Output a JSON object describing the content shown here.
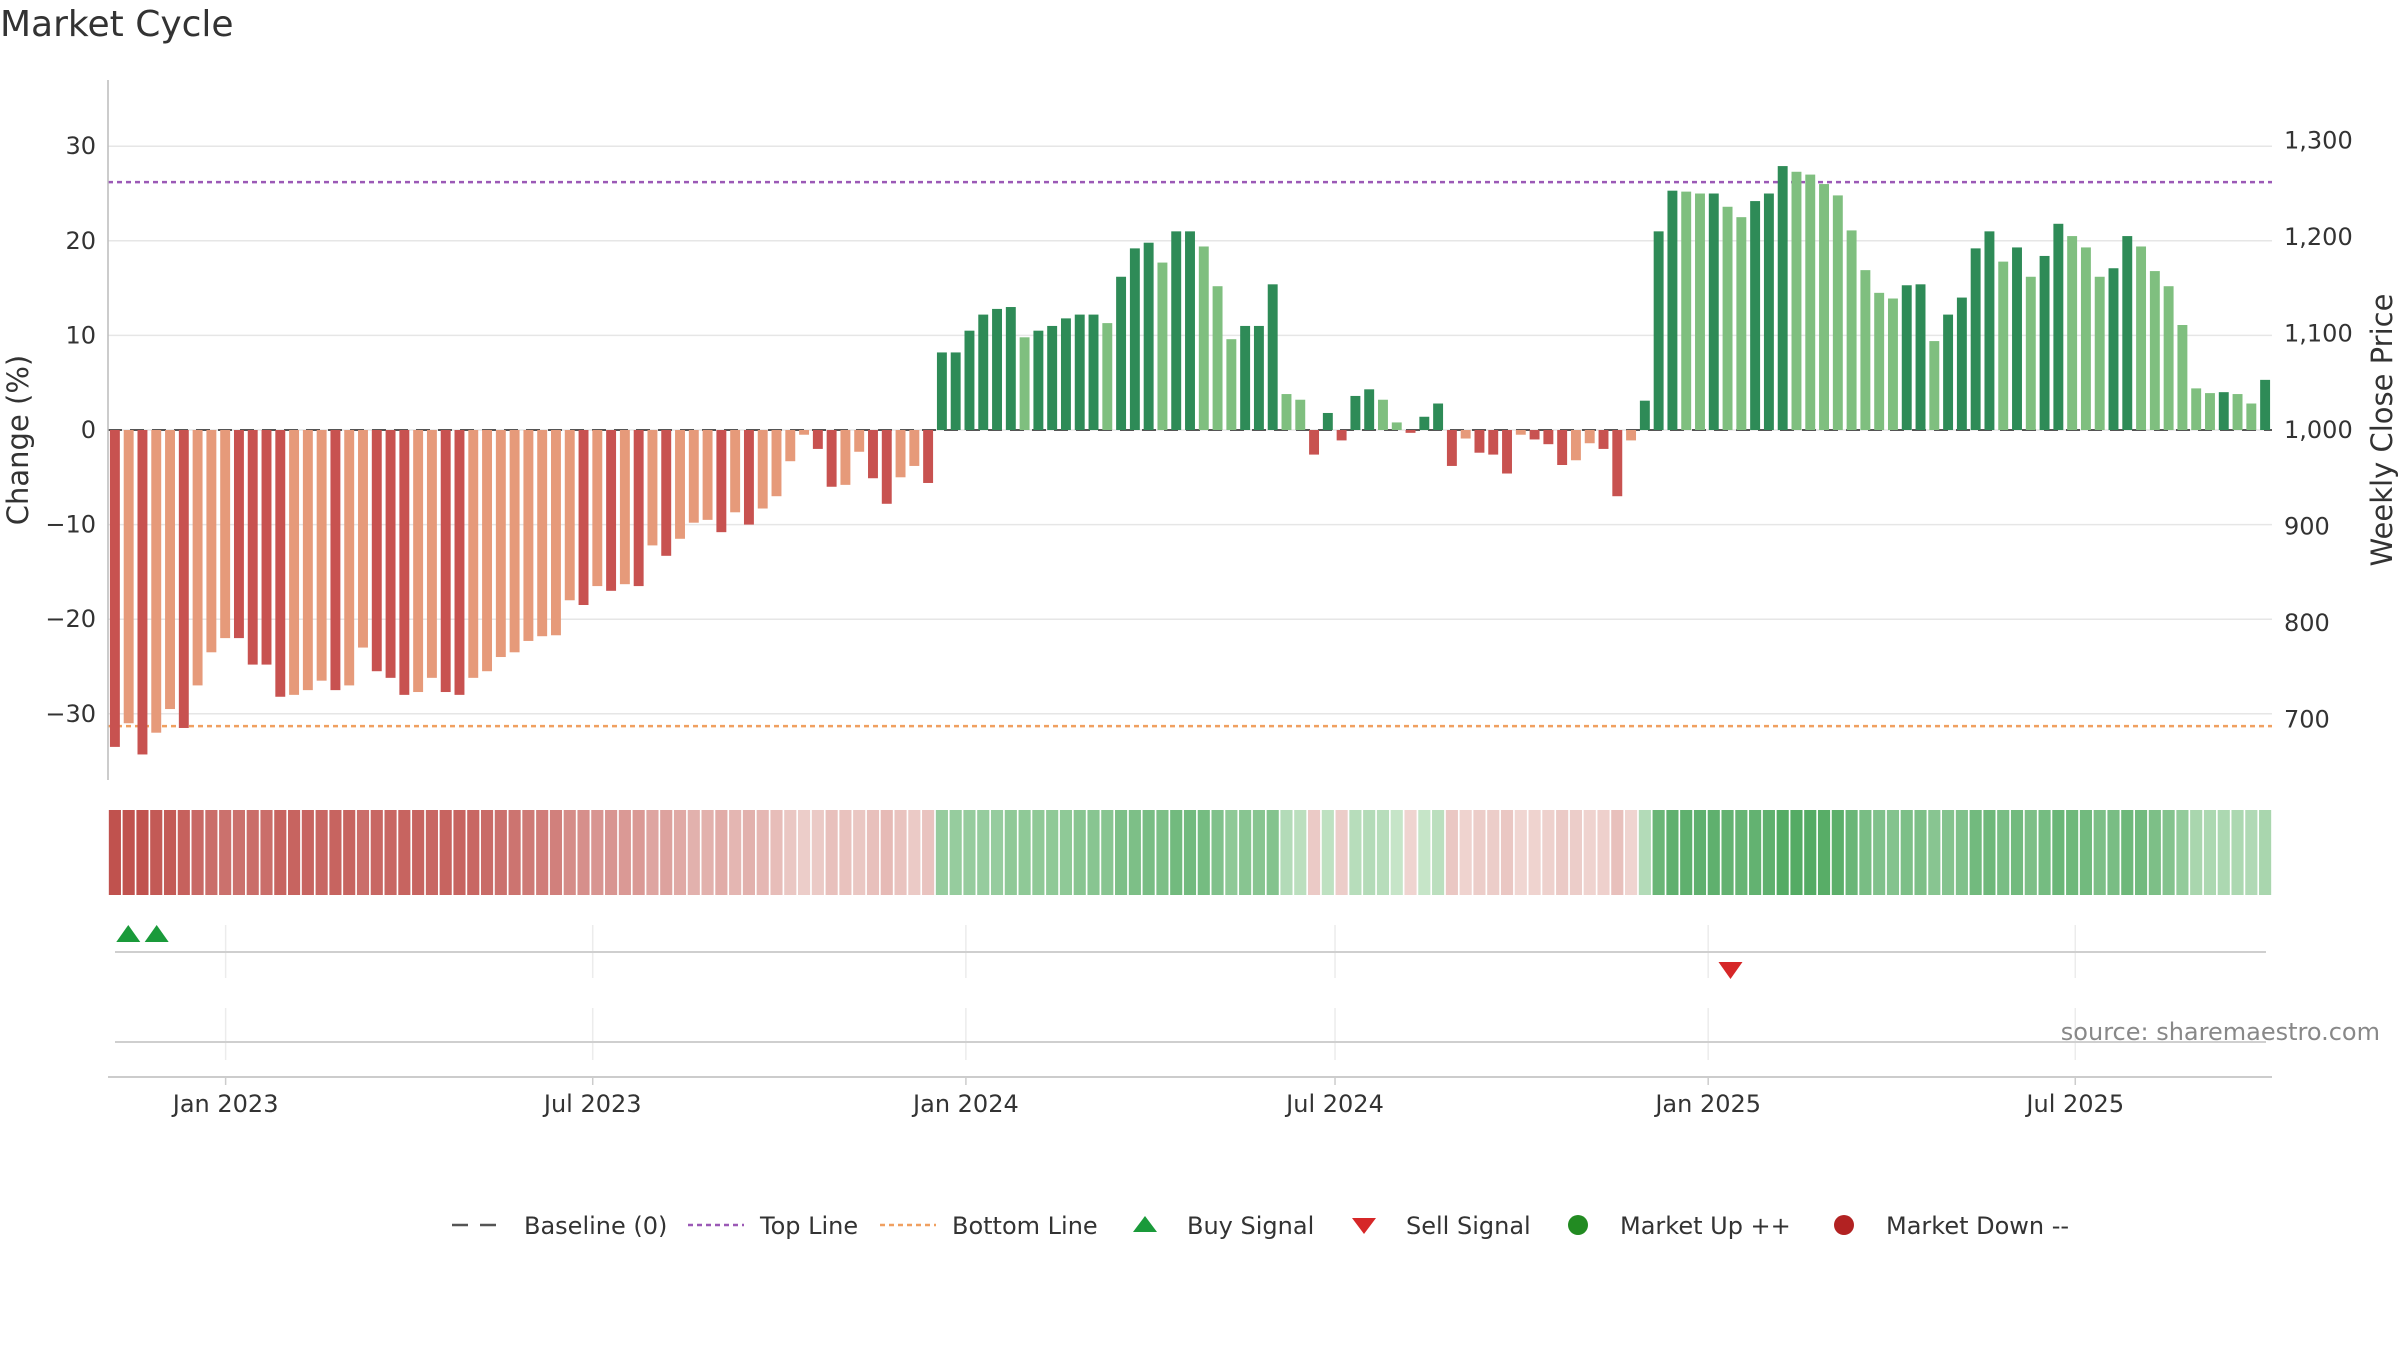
{
  "title": "Market Cycle",
  "source_note": "source: sharemaestro.com",
  "colors": {
    "strong_up": "#2e8b57",
    "weak_up": "#7fbf7f",
    "strong_down": "#c85250",
    "weak_down": "#e69a7a",
    "top_line": "#9b59b6",
    "bottom_line": "#f0a060",
    "buy": "#1a9a3a",
    "sell": "#d62728",
    "market_up": "#228b22",
    "market_down": "#b22222"
  },
  "chart_data": {
    "type": "bar",
    "title": "Market Cycle",
    "ylabel": "Change (%)",
    "ylabel_right": "Weekly Close Price",
    "ylim": [
      -37,
      37
    ],
    "yticks": [
      30,
      20,
      10,
      0,
      -10,
      -20,
      -30
    ],
    "ytick_labels": [
      "30",
      "20",
      "10",
      "0",
      "−10",
      "−20",
      "−30"
    ],
    "y2lim": [
      637,
      1363
    ],
    "y2ticks": [
      1300,
      1200,
      1100,
      1000,
      900,
      800,
      700
    ],
    "y2tick_labels": [
      "1,300",
      "1,200",
      "1,100",
      "1,000",
      "900",
      "800",
      "700"
    ],
    "x_start": "2022-11-04",
    "x_end": "2025-10-06",
    "x_ticks": [
      {
        "date": "2023-01-01",
        "label": "Jan 2023"
      },
      {
        "date": "2023-07-01",
        "label": "Jul 2023"
      },
      {
        "date": "2024-01-01",
        "label": "Jan 2024"
      },
      {
        "date": "2024-07-01",
        "label": "Jul 2024"
      },
      {
        "date": "2025-01-01",
        "label": "Jan 2025"
      },
      {
        "date": "2025-07-01",
        "label": "Jul 2025"
      }
    ],
    "top_line": 26.2,
    "bottom_line": -31.3,
    "grid": true,
    "legend_position": "bottom",
    "series": [
      {
        "name": "Change (%)",
        "values": [
          -33.5,
          -31,
          -34.3,
          -32,
          -29.5,
          -31.5,
          -27,
          -23.5,
          -22,
          -22,
          -24.8,
          -24.8,
          -28.2,
          -28,
          -27.5,
          -26.5,
          -27.5,
          -27,
          -23,
          -25.5,
          -26.2,
          -28,
          -27.7,
          -26.2,
          -27.7,
          -28,
          -26.2,
          -25.5,
          -24,
          -23.5,
          -22.3,
          -21.8,
          -21.7,
          -18,
          -18.5,
          -16.5,
          -17,
          -16.3,
          -16.5,
          -12.2,
          -13.3,
          -11.5,
          -9.8,
          -9.5,
          -10.8,
          -8.7,
          -10,
          -8.3,
          -7,
          -3.3,
          -0.5,
          -2,
          -6,
          -5.8,
          -2.3,
          -5.1,
          -7.8,
          -5,
          -3.8,
          -5.6,
          8.2,
          8.2,
          10.5,
          12.2,
          12.8,
          13,
          9.8,
          10.5,
          11,
          11.8,
          12.2,
          12.2,
          11.3,
          16.2,
          19.2,
          19.8,
          17.7,
          21,
          21,
          19.4,
          15.2,
          9.6,
          11,
          11,
          15.4,
          3.8,
          3.2,
          -2.6,
          1.8,
          -1.1,
          3.6,
          4.3,
          3.2,
          0.8,
          -0.3,
          1.4,
          2.8,
          -3.8,
          -0.9,
          -2.4,
          -2.6,
          -4.6,
          -0.5,
          -1,
          -1.5,
          -3.7,
          -3.2,
          -1.4,
          -2,
          -7,
          -1.1,
          3.1,
          21,
          25.3,
          25.2,
          25,
          25,
          23.6,
          22.5,
          24.2,
          25,
          27.9,
          27.3,
          27,
          26,
          24.8,
          21.1,
          16.9,
          14.5,
          13.9,
          15.3,
          15.4,
          9.4,
          12.2,
          14,
          19.2,
          21,
          17.8,
          19.3,
          16.2,
          18.4,
          21.8,
          20.5,
          19.3,
          16.2,
          17.1,
          20.5,
          19.4,
          16.8,
          15.2,
          11.1,
          4.4,
          3.9,
          4,
          3.8,
          2.8,
          5.3
        ]
      }
    ],
    "cycle_strip": [
      -0.9,
      -0.9,
      -0.9,
      -0.85,
      -0.85,
      -0.8,
      -0.75,
      -0.72,
      -0.7,
      -0.7,
      -0.72,
      -0.72,
      -0.78,
      -0.78,
      -0.78,
      -0.76,
      -0.78,
      -0.78,
      -0.72,
      -0.76,
      -0.76,
      -0.78,
      -0.78,
      -0.76,
      -0.78,
      -0.78,
      -0.76,
      -0.74,
      -0.7,
      -0.68,
      -0.64,
      -0.62,
      -0.6,
      -0.52,
      -0.5,
      -0.46,
      -0.46,
      -0.44,
      -0.44,
      -0.36,
      -0.38,
      -0.33,
      -0.28,
      -0.28,
      -0.31,
      -0.25,
      -0.28,
      -0.24,
      -0.2,
      -0.14,
      -0.1,
      -0.12,
      -0.18,
      -0.17,
      -0.14,
      -0.18,
      -0.22,
      -0.16,
      -0.12,
      -0.16,
      0.36,
      0.36,
      0.36,
      0.36,
      0.36,
      0.4,
      0.4,
      0.4,
      0.4,
      0.4,
      0.44,
      0.44,
      0.44,
      0.5,
      0.5,
      0.52,
      0.5,
      0.56,
      0.56,
      0.54,
      0.48,
      0.4,
      0.44,
      0.44,
      0.46,
      0.2,
      0.16,
      -0.12,
      0.14,
      -0.1,
      0.18,
      0.2,
      0.18,
      0.1,
      -0.05,
      0.1,
      0.16,
      -0.14,
      -0.06,
      -0.1,
      -0.1,
      -0.14,
      -0.04,
      -0.06,
      -0.07,
      -0.12,
      -0.1,
      -0.06,
      -0.08,
      -0.18,
      -0.05,
      0.2,
      0.6,
      0.66,
      0.66,
      0.66,
      0.66,
      0.64,
      0.62,
      0.64,
      0.66,
      0.72,
      0.72,
      0.72,
      0.7,
      0.68,
      0.6,
      0.52,
      0.48,
      0.46,
      0.5,
      0.5,
      0.44,
      0.46,
      0.48,
      0.56,
      0.58,
      0.52,
      0.56,
      0.5,
      0.54,
      0.6,
      0.58,
      0.56,
      0.5,
      0.52,
      0.58,
      0.56,
      0.5,
      0.46,
      0.38,
      0.26,
      0.24,
      0.24,
      0.24,
      0.22,
      0.26
    ],
    "buy_signals": [
      "2022-11-14",
      "2022-11-28"
    ],
    "sell_signals": [
      "2025-01-12"
    ],
    "market_up_events": [],
    "market_down_events": []
  },
  "legend": [
    {
      "key": "baseline",
      "label": "Baseline (0)"
    },
    {
      "key": "top",
      "label": "Top Line"
    },
    {
      "key": "bottom",
      "label": "Bottom Line"
    },
    {
      "key": "buy",
      "label": "Buy Signal"
    },
    {
      "key": "sell",
      "label": "Sell Signal"
    },
    {
      "key": "mup",
      "label": "Market Up ++"
    },
    {
      "key": "mdown",
      "label": "Market Down --"
    }
  ]
}
